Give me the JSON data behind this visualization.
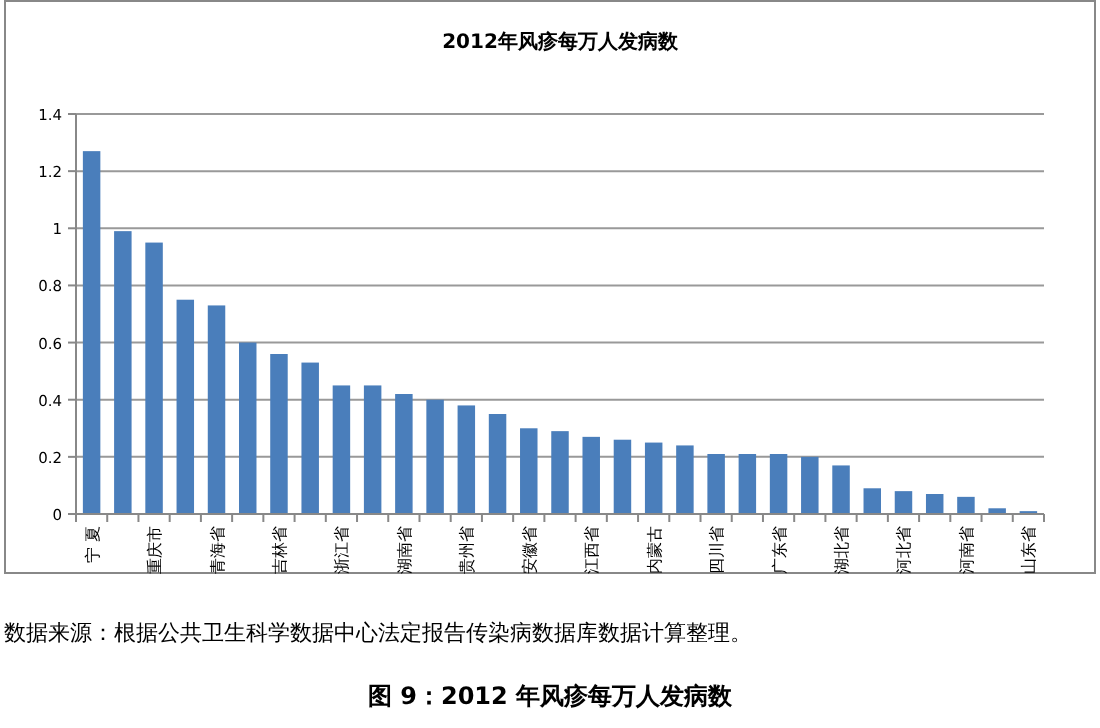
{
  "chart_data": {
    "type": "bar",
    "title": "2012年风疹每万人发病数",
    "categories": [
      "宁 夏",
      null,
      "重庆市",
      null,
      "青海省",
      null,
      "吉林省",
      null,
      "浙江省",
      null,
      "湖南省",
      null,
      "贵州省",
      null,
      "安徽省",
      null,
      "江西省",
      null,
      "内蒙古",
      null,
      "四川省",
      null,
      "广东省",
      null,
      "湖北省",
      null,
      "河北省",
      null,
      "河南省",
      null,
      "山东省"
    ],
    "values": [
      1.27,
      0.99,
      0.95,
      0.75,
      0.73,
      0.6,
      0.56,
      0.53,
      0.45,
      0.45,
      0.42,
      0.4,
      0.38,
      0.35,
      0.3,
      0.29,
      0.27,
      0.26,
      0.25,
      0.24,
      0.21,
      0.21,
      0.21,
      0.2,
      0.17,
      0.09,
      0.08,
      0.07,
      0.06,
      0.02,
      0.01
    ],
    "color": "#4a7ebb",
    "ylim": [
      0,
      1.4
    ],
    "yticks": [
      0,
      0.2,
      0.4,
      0.6,
      0.8,
      1,
      1.2,
      1.4
    ],
    "grid": "y",
    "annotations": [
      "数据来源：根据公共卫生科学数据中心法定报告传染病数据库数据计算整理。",
      "图 9：2012 年风疹每万人发病数"
    ]
  }
}
